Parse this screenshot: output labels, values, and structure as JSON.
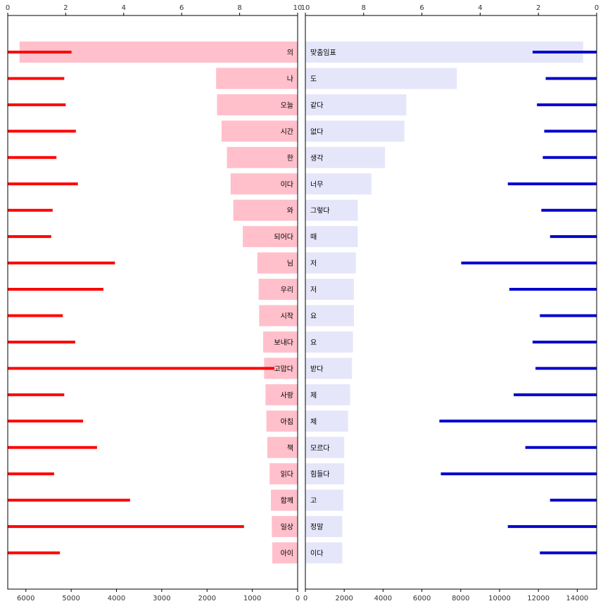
{
  "chart_data": [
    {
      "type": "bar",
      "panel": "left",
      "categories": [
        "의",
        "나",
        "오늘",
        "시간",
        "한",
        "이다",
        "와",
        "되어다",
        "님",
        "우리",
        "시작",
        "보내다",
        "고맙다",
        "사랑",
        "아침",
        "책",
        "읽다",
        "함께",
        "일상",
        "아이"
      ],
      "series": [
        {
          "values": [
            6140,
            1800,
            1780,
            1680,
            1560,
            1480,
            1420,
            1210,
            890,
            860,
            850,
            760,
            740,
            710,
            690,
            670,
            620,
            590,
            570,
            560
          ]
        },
        {
          "values": [
            2.2,
            1.95,
            2.0,
            2.35,
            1.68,
            2.42,
            1.55,
            1.5,
            3.7,
            3.3,
            1.9,
            2.33,
            9.2,
            1.95,
            2.6,
            3.08,
            1.6,
            4.22,
            8.15,
            1.8
          ]
        }
      ],
      "bottom_axis": {
        "range": [
          6400,
          0
        ],
        "ticks": [
          "6000",
          "5000",
          "4000",
          "3000",
          "2000",
          "1000",
          "0"
        ]
      },
      "top_axis": {
        "range": [
          0,
          10
        ],
        "ticks": [
          "0",
          "2",
          "4",
          "6",
          "8",
          "10"
        ]
      },
      "colors": {
        "bar": "#ffc0cb",
        "line": "#ff0000"
      }
    },
    {
      "type": "bar",
      "panel": "right",
      "categories": [
        "맞춤임표",
        "도",
        "같다",
        "없다",
        "생각",
        "너무",
        "그렇다",
        "때",
        "저",
        "저",
        "요",
        "요",
        "받다",
        "제",
        "제",
        "모르다",
        "힘들다",
        "고",
        "정말",
        "이다"
      ],
      "series": [
        {
          "values": [
            14300,
            7800,
            5200,
            5100,
            4100,
            3400,
            2700,
            2700,
            2600,
            2500,
            2500,
            2450,
            2400,
            2300,
            2200,
            2000,
            2000,
            1950,
            1900,
            1900
          ]
        },
        {
          "values": [
            2.2,
            1.75,
            2.05,
            1.8,
            1.85,
            3.05,
            1.9,
            1.6,
            4.65,
            3.0,
            1.95,
            2.2,
            2.1,
            2.85,
            5.4,
            2.45,
            5.35,
            1.6,
            3.05,
            1.95
          ]
        }
      ],
      "bottom_axis": {
        "range": [
          0,
          15000
        ],
        "ticks": [
          "0",
          "2000",
          "4000",
          "6000",
          "8000",
          "10000",
          "12000",
          "14000"
        ]
      },
      "top_axis": {
        "range": [
          10,
          0
        ],
        "ticks": [
          "10",
          "8",
          "6",
          "4",
          "2",
          "0"
        ]
      },
      "colors": {
        "bar": "#e6e6fa",
        "line": "#0000cd"
      }
    }
  ]
}
